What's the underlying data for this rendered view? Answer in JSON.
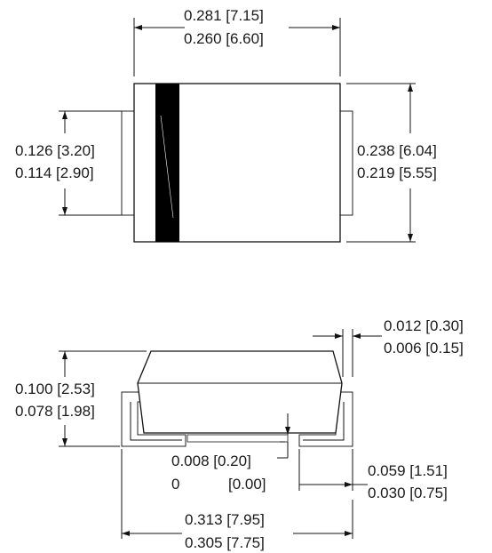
{
  "top_view": {
    "length_max": "0.281 [7.15]",
    "length_min": "0.260 [6.60]",
    "lead_width_max": "0.126 [3.20]",
    "lead_width_min": "0.114 [2.90]",
    "body_width_max": "0.238 [6.04]",
    "body_width_min": "0.219 [5.55]"
  },
  "side_view": {
    "lead_thickness_max": "0.012 [0.30]",
    "lead_thickness_min": "0.006 [0.15]",
    "height_max": "0.100 [2.53]",
    "height_min": "0.078 [1.98]",
    "standoff_max": "0.008 [0.20]",
    "standoff_min_inch": "0",
    "standoff_min_mm": "[0.00]",
    "lead_length_max": "0.059 [1.51]",
    "lead_length_min": "0.030 [0.75]",
    "overall_length_max": "0.313 [7.95]",
    "overall_length_min": "0.305 [7.75]"
  },
  "colors": {
    "outline": "#111111",
    "cathode_band": "#000000",
    "background": "#ffffff"
  }
}
